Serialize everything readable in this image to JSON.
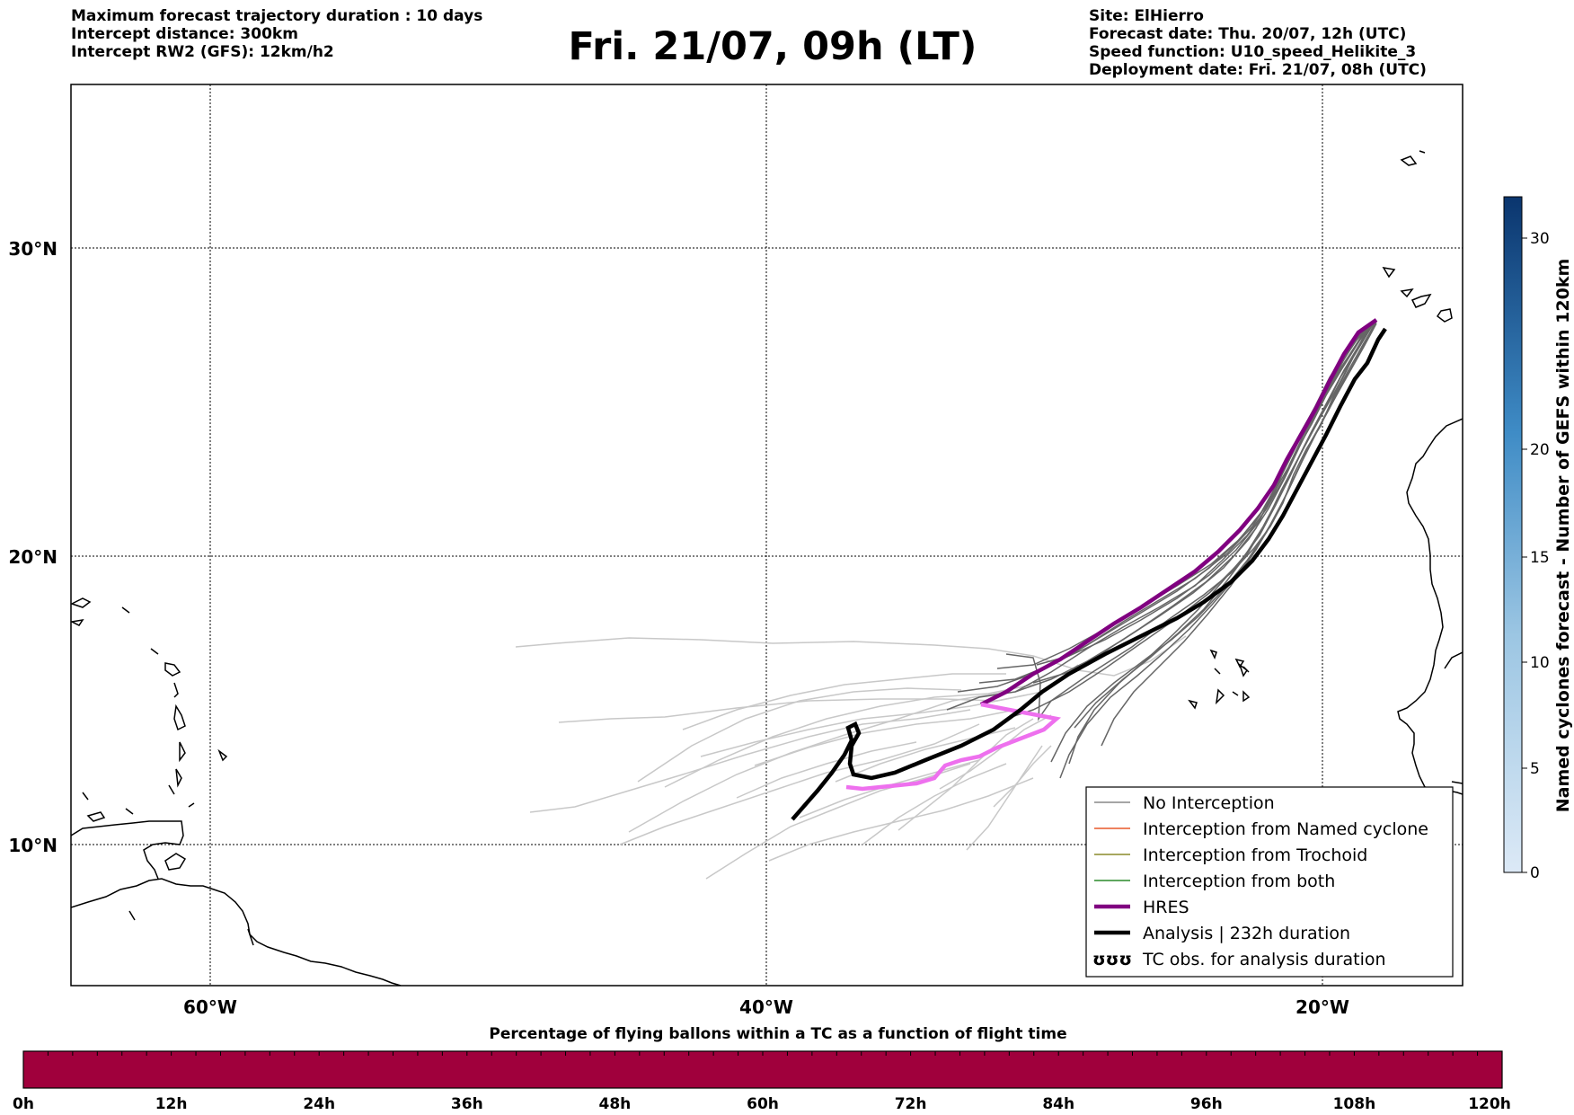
{
  "header": {
    "left": [
      "Maximum forecast trajectory duration : 10 days",
      "Intercept distance: 300km",
      "Intercept RW2 (GFS):  12km/h2"
    ],
    "title": "Fri. 21/07, 09h (LT)",
    "right": [
      "Site: ElHierro",
      "Forecast date: Thu. 20/07, 12h (UTC)",
      "Speed function: U10_speed_Helikite_3",
      "Deployment date: Fri. 21/07, 08h (UTC)"
    ]
  },
  "map": {
    "lat_labels": [
      "30°N",
      "20°N",
      "10°N"
    ],
    "lon_labels": [
      "60°W",
      "40°W",
      "20°W"
    ],
    "legend": [
      {
        "label": "No Interception",
        "color": "#888888",
        "style": "thin"
      },
      {
        "label": "Interception from Named cyclone",
        "color": "#e8582a",
        "style": "thin"
      },
      {
        "label": "Interception from Trochoid",
        "color": "#8a8a2a",
        "style": "thin"
      },
      {
        "label": "Interception from both",
        "color": "#2a8a2a",
        "style": "thin"
      },
      {
        "label": "HRES",
        "color": "#800080",
        "style": "thick"
      },
      {
        "label": "Analysis | 232h duration",
        "color": "#000000",
        "style": "thick"
      },
      {
        "label": "TC obs. for analysis duration",
        "color": "#000000",
        "style": "symbol",
        "symbol": "ʊʊʊ"
      }
    ]
  },
  "colorbar_right": {
    "label": "Named cyclones forecast - Number of GEFS within 120km",
    "ticks": [
      "0",
      "5",
      "10",
      "15",
      "20",
      "30"
    ]
  },
  "colorbar_bottom": {
    "title": "Percentage of flying ballons within a TC as a function of flight time",
    "ticks": [
      "0h",
      "12h",
      "24h",
      "36h",
      "48h",
      "60h",
      "72h",
      "84h",
      "96h",
      "108h",
      "120h"
    ],
    "color": "#a0003c"
  }
}
